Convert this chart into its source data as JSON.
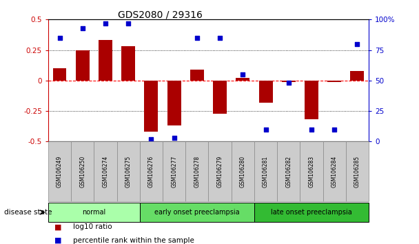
{
  "title": "GDS2080 / 29316",
  "samples": [
    "GSM106249",
    "GSM106250",
    "GSM106274",
    "GSM106275",
    "GSM106276",
    "GSM106277",
    "GSM106278",
    "GSM106279",
    "GSM106280",
    "GSM106281",
    "GSM106282",
    "GSM106283",
    "GSM106284",
    "GSM106285"
  ],
  "log10_ratio": [
    0.1,
    0.25,
    0.33,
    0.28,
    -0.42,
    -0.37,
    0.09,
    -0.27,
    0.02,
    -0.18,
    -0.01,
    -0.32,
    -0.01,
    0.08
  ],
  "percentile_rank": [
    85,
    93,
    97,
    97,
    2,
    3,
    85,
    85,
    55,
    10,
    48,
    10,
    10,
    80
  ],
  "groups": [
    {
      "label": "normal",
      "start": 0,
      "end": 4,
      "color": "#aaffaa"
    },
    {
      "label": "early onset preeclampsia",
      "start": 4,
      "end": 9,
      "color": "#66dd66"
    },
    {
      "label": "late onset preeclampsia",
      "start": 9,
      "end": 14,
      "color": "#33bb33"
    }
  ],
  "bar_color": "#aa0000",
  "dot_color": "#0000cc",
  "ylim_left": [
    -0.5,
    0.5
  ],
  "ylim_right": [
    0,
    100
  ],
  "yticks_left": [
    -0.5,
    -0.25,
    0,
    0.25,
    0.5
  ],
  "yticks_right": [
    0,
    25,
    50,
    75,
    100
  ],
  "hlines_dotted": [
    -0.25,
    0.25
  ],
  "legend_items": [
    {
      "label": "log10 ratio",
      "color": "#aa0000"
    },
    {
      "label": "percentile rank within the sample",
      "color": "#0000cc"
    }
  ],
  "disease_state_label": "disease state",
  "left_axis_color": "#cc0000",
  "right_axis_color": "#0000cc",
  "xlabel_bg_color": "#cccccc",
  "xlabel_border_color": "#888888"
}
